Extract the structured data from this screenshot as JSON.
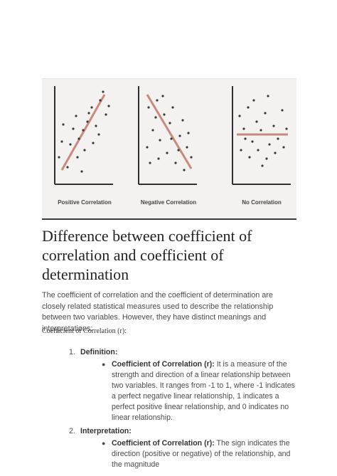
{
  "figure": {
    "panels": [
      {
        "caption": "Positive Correlation"
      },
      {
        "caption": "Negative Correlation"
      },
      {
        "caption": "No Correlation"
      }
    ]
  },
  "heading": "Difference between coefficient of correlation and coefficient of determination",
  "intro": "The coefficient of correlation and the coefficient of determination are closely related statistical measures used to describe the relationship between two variables. However, they have distinct meanings and interpretations:",
  "subheading": "Coefficient of Correlation (r):",
  "items": [
    {
      "number": "1.",
      "label": "Definition:",
      "bullet_term": "Coefficient of Correlation (r):",
      "bullet_text": " It is a measure of the strength and direction of a linear relationship between two variables. It ranges from -1 to 1, where -1 indicates a perfect negative linear relationship, 1 indicates a perfect positive linear relationship, and 0 indicates no linear relationship."
    },
    {
      "number": "2.",
      "label": "Interpretation:",
      "bullet_term": "Coefficient of Correlation (r):",
      "bullet_text": " The sign indicates the direction (positive or negative) of the relationship, and the magnitude"
    }
  ],
  "colors": {
    "trend_line": "#c98a7c",
    "axes": "#2f2f2f",
    "dots": "#3a3a3a"
  }
}
